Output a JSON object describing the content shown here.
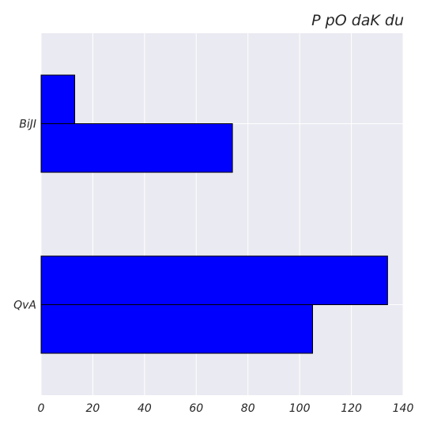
{
  "chart_data": {
    "type": "bar",
    "orientation": "horizontal",
    "title": "P pO daK du",
    "xlabel": "",
    "ylabel": "",
    "categories": [
      "BiJI",
      "QvA"
    ],
    "series": [
      {
        "values": [
          13,
          134
        ]
      },
      {
        "values": [
          74,
          105
        ]
      }
    ],
    "xlim": [
      0,
      140
    ],
    "x_ticks": [
      0,
      20,
      40,
      60,
      80,
      100,
      120,
      140
    ],
    "grid": true,
    "legend": "none",
    "colors": {
      "bar": "#0000ff",
      "bar_edge": "#000000",
      "plot_background": "#eaeaf2",
      "grid": "#ffffff"
    }
  }
}
